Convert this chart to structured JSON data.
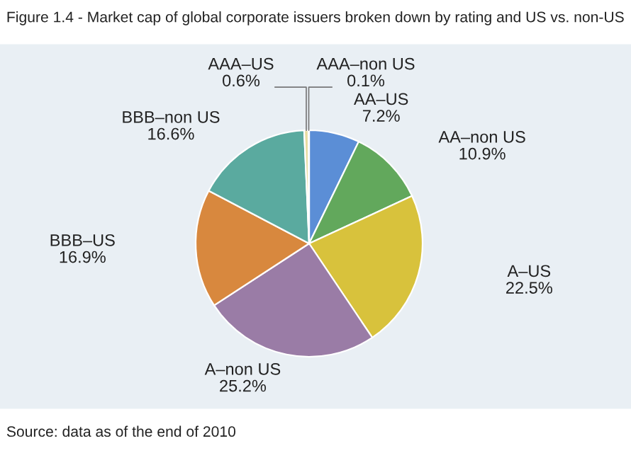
{
  "chart_data": {
    "type": "pie",
    "title": "Figure 1.4 - Market cap of global corporate issuers broken down by rating and US vs. non-US",
    "categories": [
      "AA–US",
      "AA–non US",
      "A–US",
      "A–non US",
      "BBB–US",
      "BBB–non US",
      "AAA–US",
      "AAA–non US"
    ],
    "values": [
      7.2,
      10.9,
      22.5,
      25.2,
      16.9,
      16.6,
      0.6,
      0.1
    ],
    "value_labels": [
      "7.2%",
      "10.9%",
      "22.5%",
      "25.2%",
      "16.9%",
      "16.6%",
      "0.6%",
      "0.1%"
    ],
    "colors": [
      "#5b8ed6",
      "#62a85c",
      "#d8c23c",
      "#9a7ca6",
      "#d8883e",
      "#5aaa9f",
      "#e8dca0",
      "#b0b0b0"
    ],
    "annotations": [
      "Source: data as of the end of 2010"
    ],
    "legend": false
  }
}
